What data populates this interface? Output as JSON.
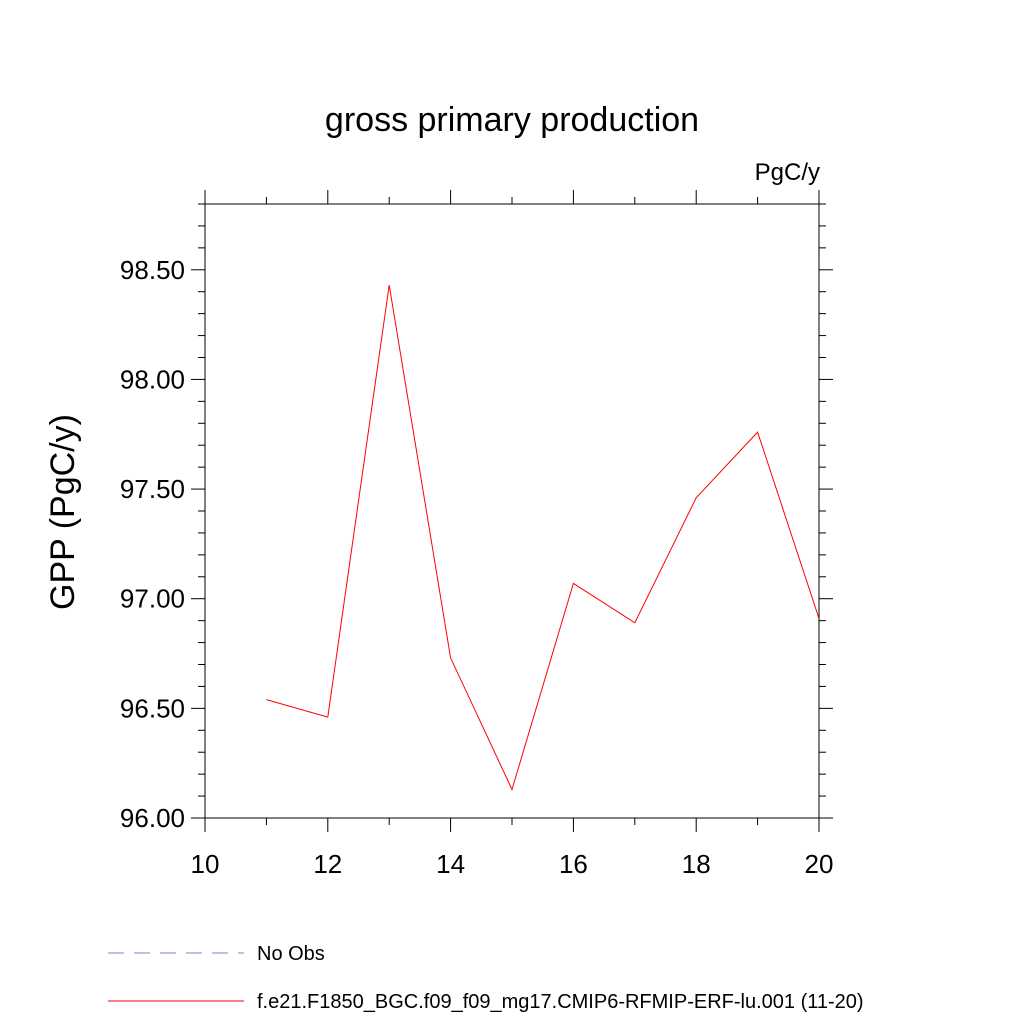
{
  "chart_data": {
    "type": "line",
    "title": "gross primary production",
    "units_label": "PgC/y",
    "xlabel": "",
    "ylabel": "GPP  (PgC/y)",
    "xlim": [
      10,
      20
    ],
    "ylim": [
      96.0,
      98.8
    ],
    "xticks": [
      10,
      12,
      14,
      16,
      18,
      20
    ],
    "xtick_labels": [
      "10",
      "12",
      "14",
      "16",
      "18",
      "20"
    ],
    "yticks": [
      96.0,
      96.5,
      97.0,
      97.5,
      98.0,
      98.5
    ],
    "ytick_labels": [
      "96.00",
      "96.50",
      "97.00",
      "97.50",
      "98.00",
      "98.50"
    ],
    "grid": false,
    "legend_position": "bottom-left",
    "series": [
      {
        "name": "No Obs",
        "color": "#8080c0",
        "style": "dashed",
        "x": [],
        "y": []
      },
      {
        "name": "f.e21.F1850_BGC.f09_f09_mg17.CMIP6-RFMIP-ERF-lu.001 (11-20)",
        "color": "#ff0000",
        "style": "solid",
        "x": [
          11,
          12,
          13,
          14,
          15,
          16,
          17,
          18,
          19,
          20
        ],
        "y": [
          96.54,
          96.46,
          98.43,
          96.73,
          96.13,
          97.07,
          96.89,
          97.46,
          97.76,
          96.91
        ]
      }
    ]
  }
}
